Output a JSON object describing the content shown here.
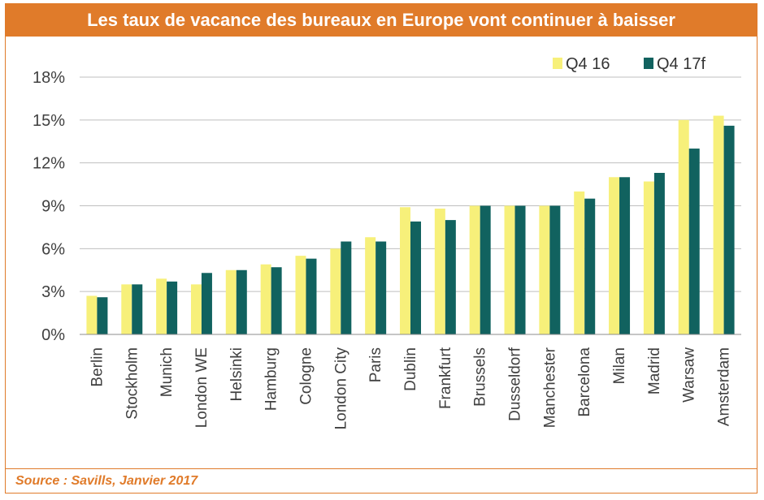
{
  "title": "Les taux de vacance des bureaux en Europe vont continuer à baisser",
  "source": "Source : Savills, Janvier 2017",
  "colors": {
    "accent": "#e07b2a",
    "series1": "#f7f07a",
    "series2": "#11625f",
    "grid": "#bfbfbf"
  },
  "chart_data": {
    "type": "bar",
    "title": "Les taux de vacance des bureaux en Europe vont continuer à baisser",
    "xlabel": "",
    "ylabel": "",
    "ylim": [
      0,
      18
    ],
    "yticks": [
      "0%",
      "3%",
      "6%",
      "9%",
      "12%",
      "15%",
      "18%"
    ],
    "grid": true,
    "legend_position": "top-right",
    "categories": [
      "Berlin",
      "Stockholm",
      "Munich",
      "London WE",
      "Helsinki",
      "Hamburg",
      "Cologne",
      "London City",
      "Paris",
      "Dublin",
      "Frankfurt",
      "Brussels",
      "Dusseldorf",
      "Manchester",
      "Barcelona",
      "Milan",
      "Madrid",
      "Warsaw",
      "Amsterdam"
    ],
    "series": [
      {
        "name": "Q4 16",
        "color": "#f7f07a",
        "values": [
          2.7,
          3.5,
          3.9,
          3.5,
          4.5,
          4.9,
          5.5,
          6.0,
          6.8,
          8.9,
          8.8,
          9.0,
          9.0,
          9.0,
          10.0,
          11.0,
          10.7,
          15.0,
          15.3
        ]
      },
      {
        "name": "Q4 17f",
        "color": "#11625f",
        "values": [
          2.6,
          3.5,
          3.7,
          4.3,
          4.5,
          4.7,
          5.3,
          6.5,
          6.5,
          7.9,
          8.0,
          9.0,
          9.0,
          9.0,
          9.5,
          11.0,
          11.3,
          13.0,
          14.6
        ]
      }
    ]
  }
}
